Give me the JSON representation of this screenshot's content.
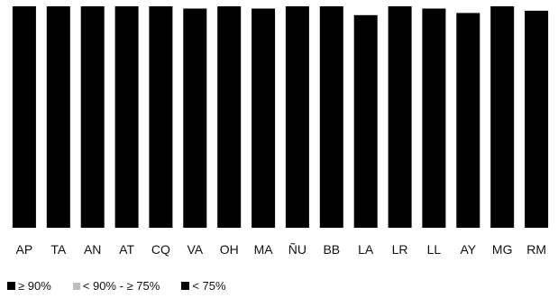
{
  "chart_data": {
    "type": "bar",
    "categories": [
      "AP",
      "TA",
      "AN",
      "AT",
      "CQ",
      "VA",
      "OH",
      "MA",
      "ÑU",
      "BB",
      "LA",
      "LR",
      "LL",
      "AY",
      "MG",
      "RM"
    ],
    "values": [
      100,
      100,
      100,
      100,
      100,
      99,
      100,
      99,
      100,
      100,
      96,
      100,
      99,
      97,
      100,
      98
    ],
    "ylim": [
      0,
      100
    ],
    "bar_color": "#000000",
    "grid": false,
    "legend_position": "bottom-left",
    "legend": [
      {
        "label": "≥ 90%",
        "color": "#000000"
      },
      {
        "label": "< 90% - ≥ 75%",
        "color": "#bdbdbd"
      },
      {
        "label": "< 75%",
        "color": "#000000"
      }
    ]
  }
}
